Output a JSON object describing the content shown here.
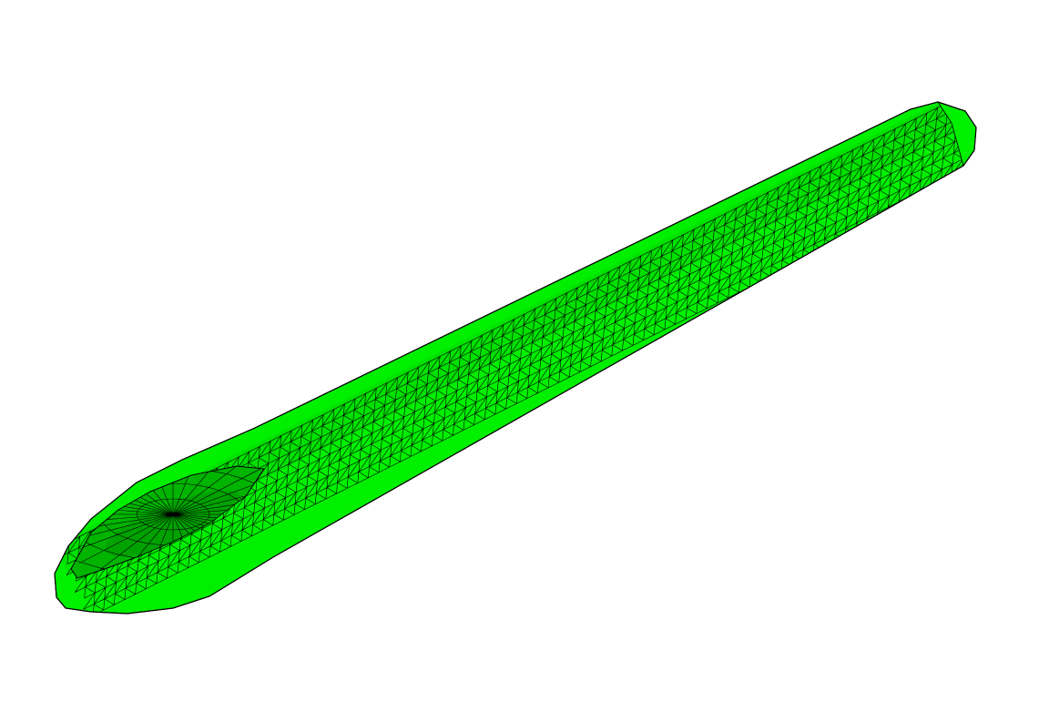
{
  "model": {
    "object": "needle-mesh",
    "fill_color": "#00f000",
    "shade_color": "#00b400",
    "dark_color": "#008c00",
    "edge_color": "#000000",
    "background": "#ffffff"
  }
}
